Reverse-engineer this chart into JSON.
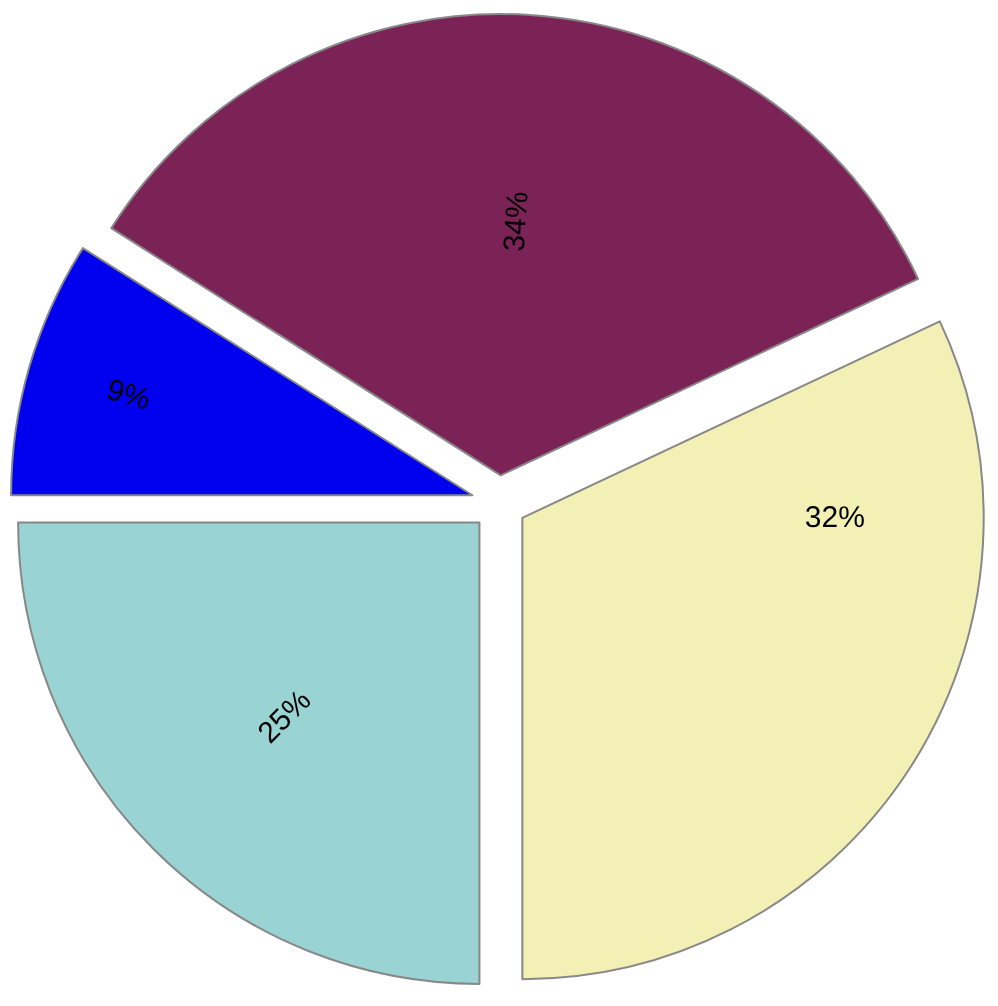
{
  "chart_data": {
    "type": "pie",
    "categories": [
      null,
      null,
      null,
      null
    ],
    "values": [
      34,
      32,
      25,
      9
    ],
    "value_labels": [
      "34%",
      "32%",
      "25%",
      "9%"
    ],
    "colors": [
      "#7b2257",
      "#f3f0b6",
      "#99d3d3",
      "#0000ee"
    ],
    "legend": false
  }
}
